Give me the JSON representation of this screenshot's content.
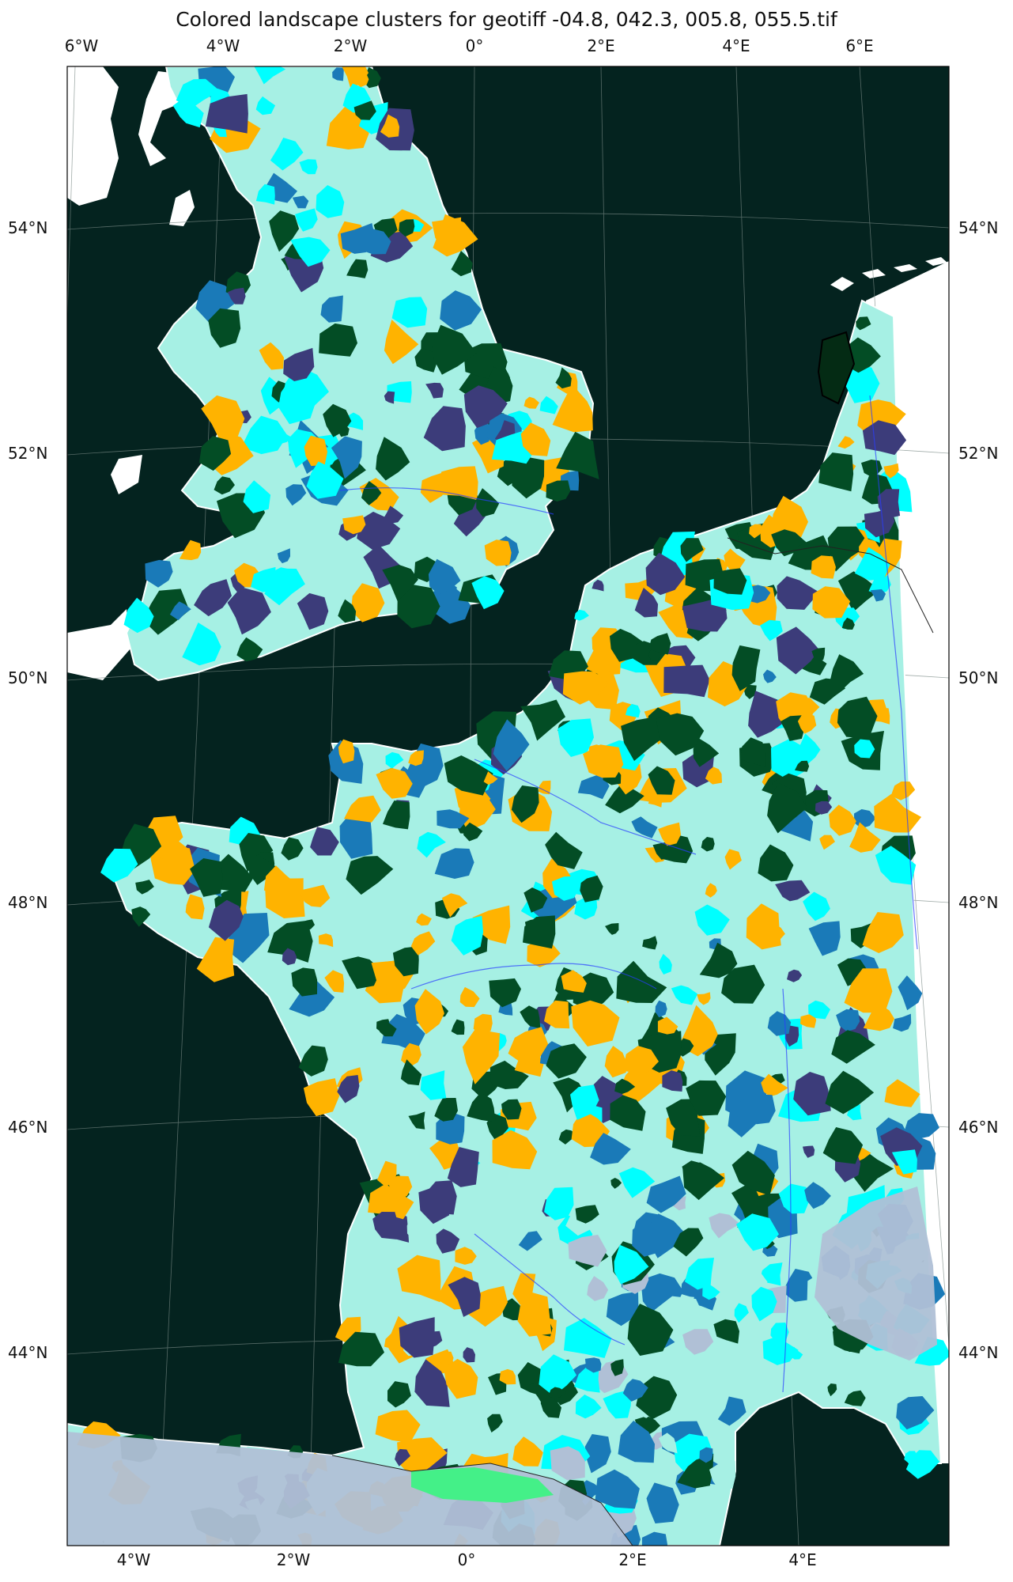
{
  "title": "Colored landscape clusters for geotiff -04.8, 042.3, 005.8, 055.5.tif",
  "axes": {
    "top_ticks": [
      "6°W",
      "4°W",
      "2°W",
      "0°",
      "2°E",
      "4°E",
      "6°E"
    ],
    "bottom_ticks": [
      "4°W",
      "2°W",
      "0°",
      "2°E",
      "4°E"
    ],
    "left_ticks": [
      "54°N",
      "52°N",
      "50°N",
      "48°N",
      "46°N",
      "44°N"
    ],
    "right_ticks": [
      "54°N",
      "52°N",
      "50°N",
      "48°N",
      "46°N",
      "44°N"
    ]
  },
  "colors": {
    "sea": "#04231f",
    "background": "#ffffff",
    "coastline": "#ffffff",
    "graticule": "#7a8a86",
    "clusters": [
      "#a6f0e4",
      "#ffb300",
      "#034d25",
      "#00ffff",
      "#3c3c7a",
      "#1a7ab8",
      "#b0c0d6",
      "#6b9a7e",
      "#44f088"
    ]
  }
}
